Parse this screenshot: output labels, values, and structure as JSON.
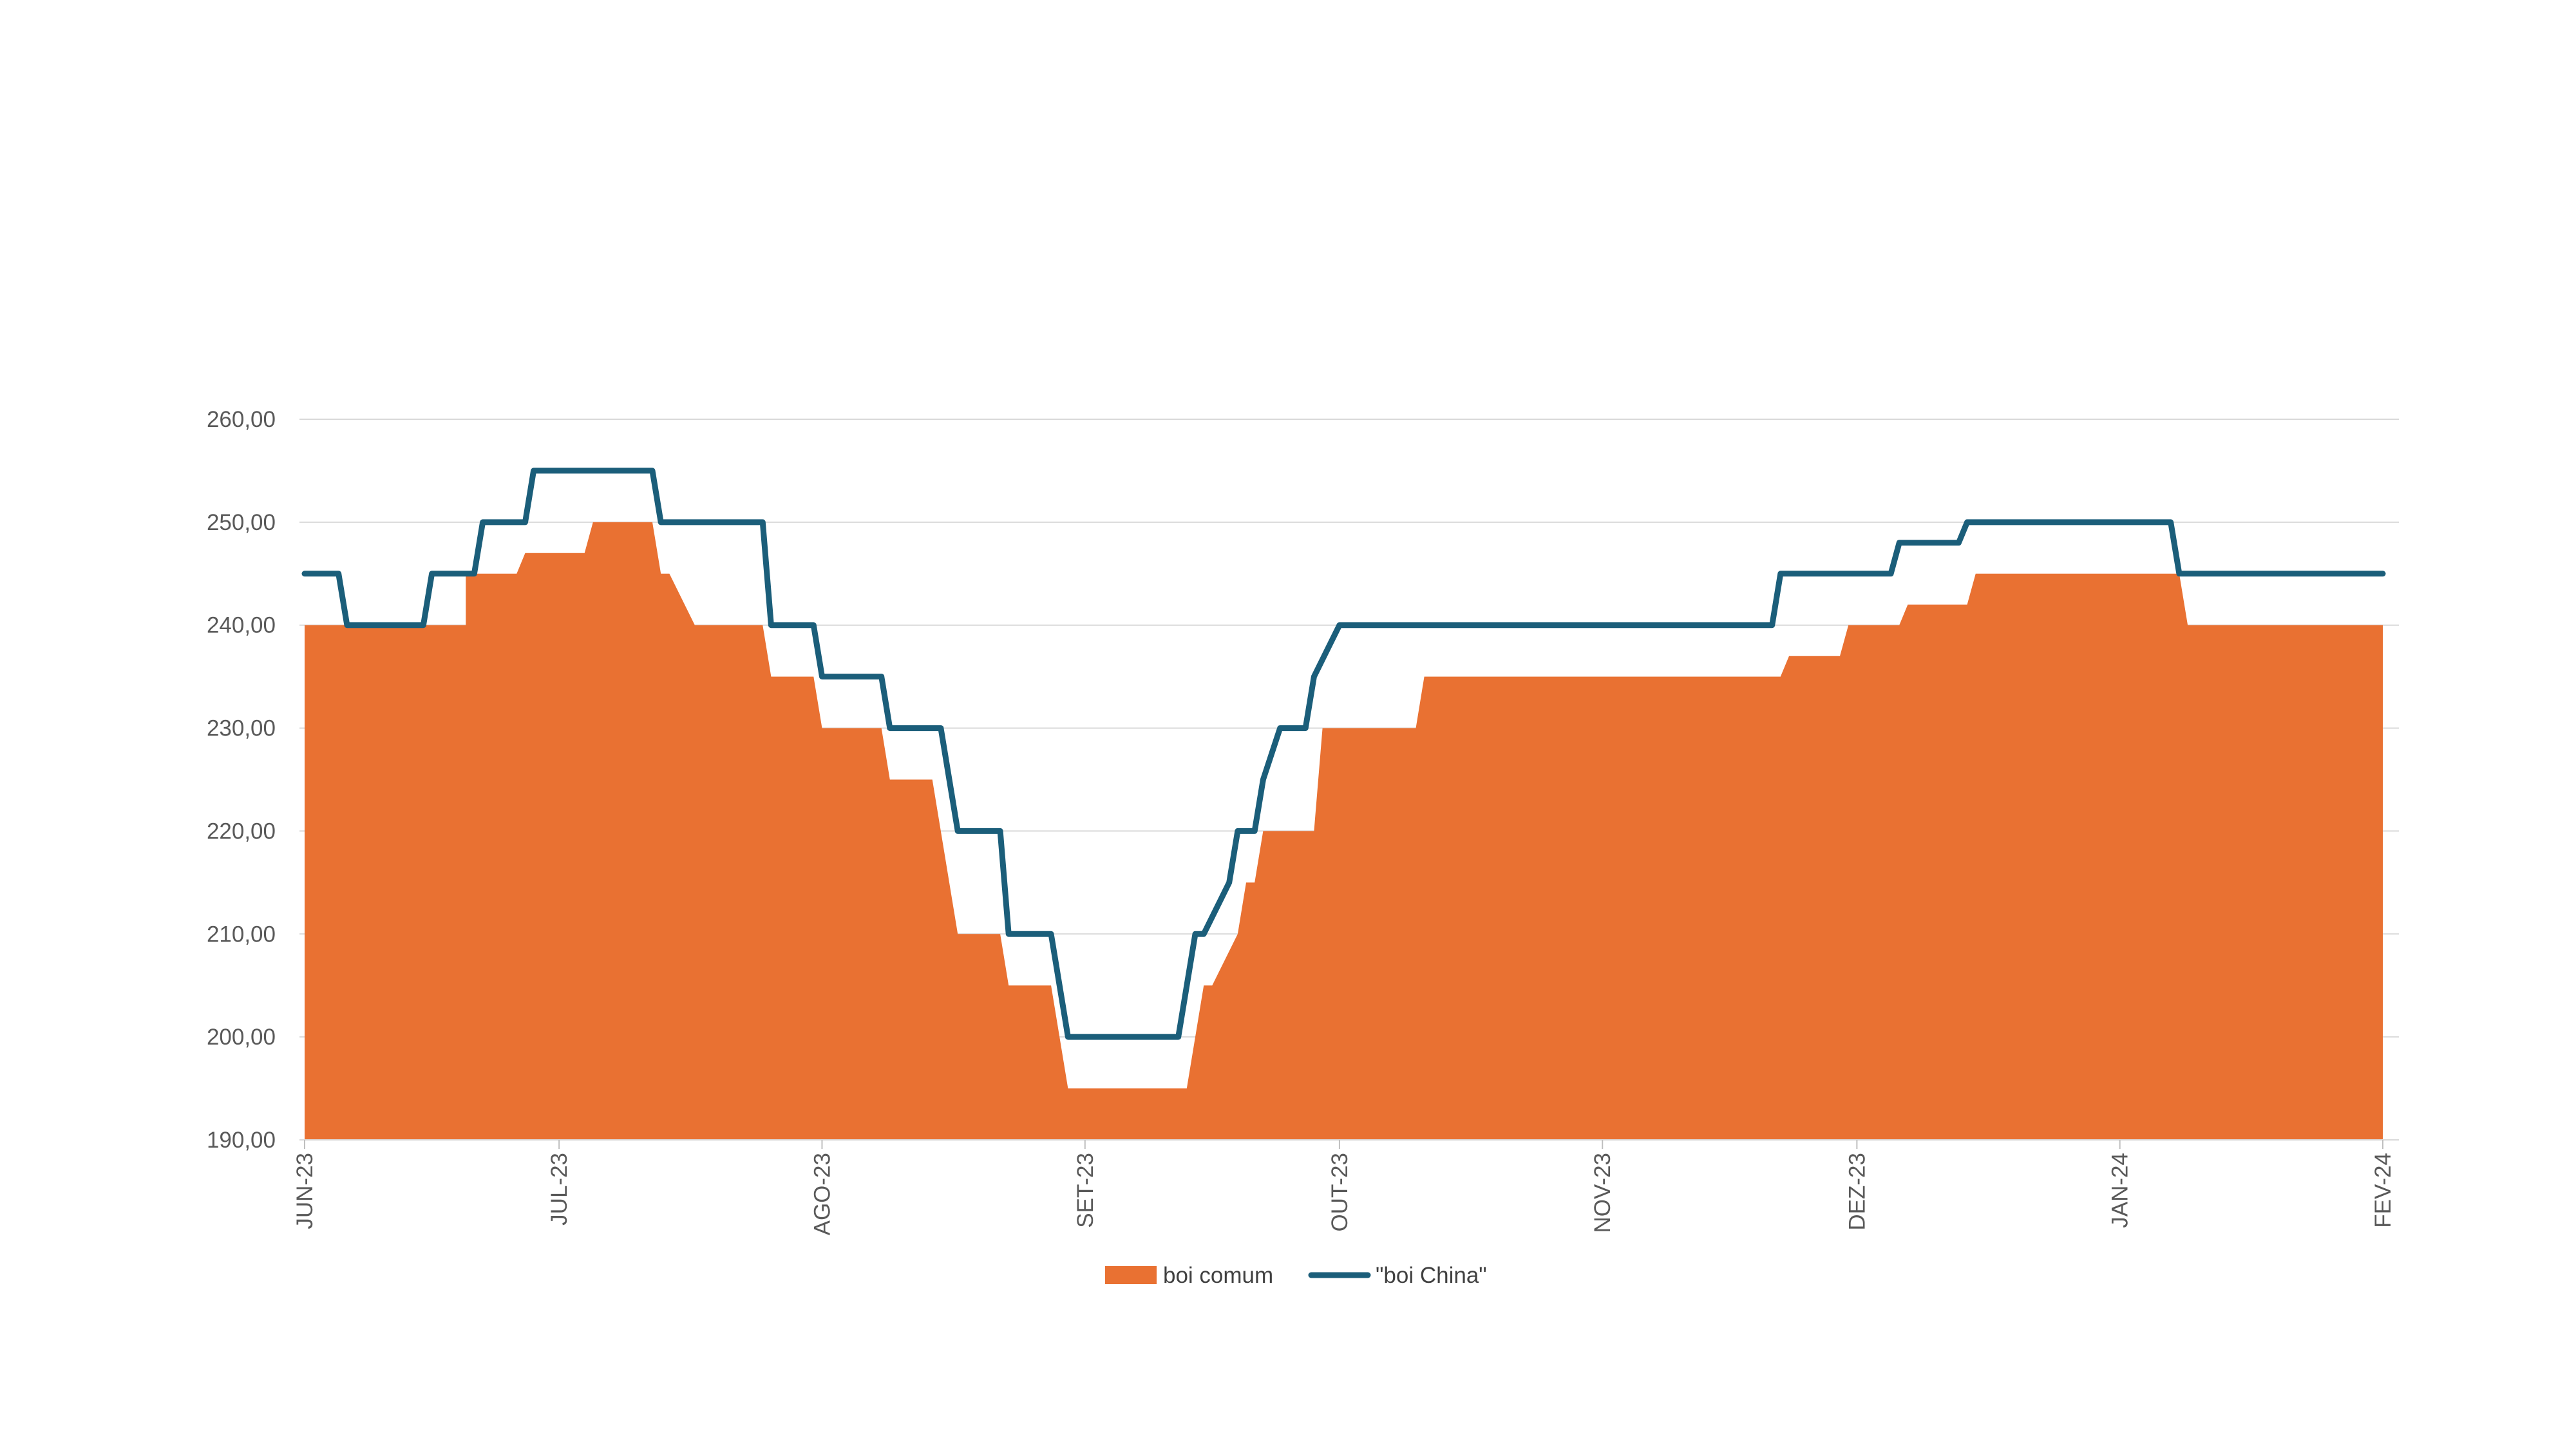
{
  "chart_data": {
    "type": "area",
    "title": "",
    "xlabel": "",
    "ylabel": "",
    "ylim": [
      190,
      260
    ],
    "yticks": [
      190,
      200,
      210,
      220,
      230,
      240,
      250,
      260
    ],
    "ytick_labels": [
      "190,00",
      "200,00",
      "210,00",
      "220,00",
      "230,00",
      "240,00",
      "250,00",
      "260,00"
    ],
    "xlim": [
      "2023-06-01",
      "2024-02-01"
    ],
    "xticks": [
      "2023-06-01",
      "2023-07-01",
      "2023-08-01",
      "2023-09-01",
      "2023-10-01",
      "2023-11-01",
      "2023-12-01",
      "2024-01-01",
      "2024-02-01"
    ],
    "xtick_labels": [
      "JUN-23",
      "JUL-23",
      "AGO-23",
      "SET-23",
      "OUT-23",
      "NOV-23",
      "DEZ-23",
      "JAN-24",
      "FEV-24"
    ],
    "grid": true,
    "legend_position": "bottom",
    "series": [
      {
        "name": "boi comum",
        "kind": "area",
        "color": "#E97132",
        "points": [
          [
            "2023-06-01",
            240
          ],
          [
            "2023-06-20",
            240
          ],
          [
            "2023-06-20",
            245
          ],
          [
            "2023-06-26",
            245
          ],
          [
            "2023-06-27",
            247
          ],
          [
            "2023-07-04",
            247
          ],
          [
            "2023-07-05",
            250
          ],
          [
            "2023-07-12",
            250
          ],
          [
            "2023-07-13",
            245
          ],
          [
            "2023-07-14",
            245
          ],
          [
            "2023-07-17",
            240
          ],
          [
            "2023-07-25",
            240
          ],
          [
            "2023-07-26",
            235
          ],
          [
            "2023-07-31",
            235
          ],
          [
            "2023-08-01",
            230
          ],
          [
            "2023-08-08",
            230
          ],
          [
            "2023-08-09",
            225
          ],
          [
            "2023-08-14",
            225
          ],
          [
            "2023-08-17",
            210
          ],
          [
            "2023-08-22",
            210
          ],
          [
            "2023-08-23",
            205
          ],
          [
            "2023-08-28",
            205
          ],
          [
            "2023-08-30",
            195
          ],
          [
            "2023-09-13",
            195
          ],
          [
            "2023-09-15",
            205
          ],
          [
            "2023-09-16",
            205
          ],
          [
            "2023-09-19",
            210
          ],
          [
            "2023-09-20",
            215
          ],
          [
            "2023-09-21",
            215
          ],
          [
            "2023-09-22",
            220
          ],
          [
            "2023-09-28",
            220
          ],
          [
            "2023-09-29",
            230
          ],
          [
            "2023-10-10",
            230
          ],
          [
            "2023-10-11",
            235
          ],
          [
            "2023-11-22",
            235
          ],
          [
            "2023-11-23",
            237
          ],
          [
            "2023-11-29",
            237
          ],
          [
            "2023-11-30",
            240
          ],
          [
            "2023-12-06",
            240
          ],
          [
            "2023-12-07",
            242
          ],
          [
            "2023-12-14",
            242
          ],
          [
            "2023-12-15",
            245
          ],
          [
            "2024-01-08",
            245
          ],
          [
            "2024-01-09",
            240
          ],
          [
            "2024-02-01",
            240
          ]
        ]
      },
      {
        "name": "\"boi China\"",
        "kind": "line",
        "color": "#1B5E7A",
        "points": [
          [
            "2023-06-01",
            245
          ],
          [
            "2023-06-05",
            245
          ],
          [
            "2023-06-06",
            240
          ],
          [
            "2023-06-15",
            240
          ],
          [
            "2023-06-16",
            245
          ],
          [
            "2023-06-21",
            245
          ],
          [
            "2023-06-22",
            250
          ],
          [
            "2023-06-27",
            250
          ],
          [
            "2023-06-28",
            255
          ],
          [
            "2023-07-12",
            255
          ],
          [
            "2023-07-13",
            250
          ],
          [
            "2023-07-25",
            250
          ],
          [
            "2023-07-26",
            240
          ],
          [
            "2023-07-31",
            240
          ],
          [
            "2023-08-01",
            235
          ],
          [
            "2023-08-08",
            235
          ],
          [
            "2023-08-09",
            230
          ],
          [
            "2023-08-15",
            230
          ],
          [
            "2023-08-17",
            220
          ],
          [
            "2023-08-22",
            220
          ],
          [
            "2023-08-23",
            210
          ],
          [
            "2023-08-28",
            210
          ],
          [
            "2023-08-30",
            200
          ],
          [
            "2023-09-12",
            200
          ],
          [
            "2023-09-14",
            210
          ],
          [
            "2023-09-15",
            210
          ],
          [
            "2023-09-18",
            215
          ],
          [
            "2023-09-19",
            220
          ],
          [
            "2023-09-21",
            220
          ],
          [
            "2023-09-22",
            225
          ],
          [
            "2023-09-24",
            230
          ],
          [
            "2023-09-27",
            230
          ],
          [
            "2023-09-28",
            235
          ],
          [
            "2023-10-01",
            240
          ],
          [
            "2023-11-21",
            240
          ],
          [
            "2023-11-22",
            245
          ],
          [
            "2023-11-29",
            245
          ],
          [
            "2023-11-30",
            245
          ],
          [
            "2023-12-05",
            245
          ],
          [
            "2023-12-06",
            248
          ],
          [
            "2023-12-13",
            248
          ],
          [
            "2023-12-14",
            250
          ],
          [
            "2024-01-07",
            250
          ],
          [
            "2024-01-08",
            245
          ],
          [
            "2024-02-01",
            245
          ]
        ]
      }
    ]
  }
}
